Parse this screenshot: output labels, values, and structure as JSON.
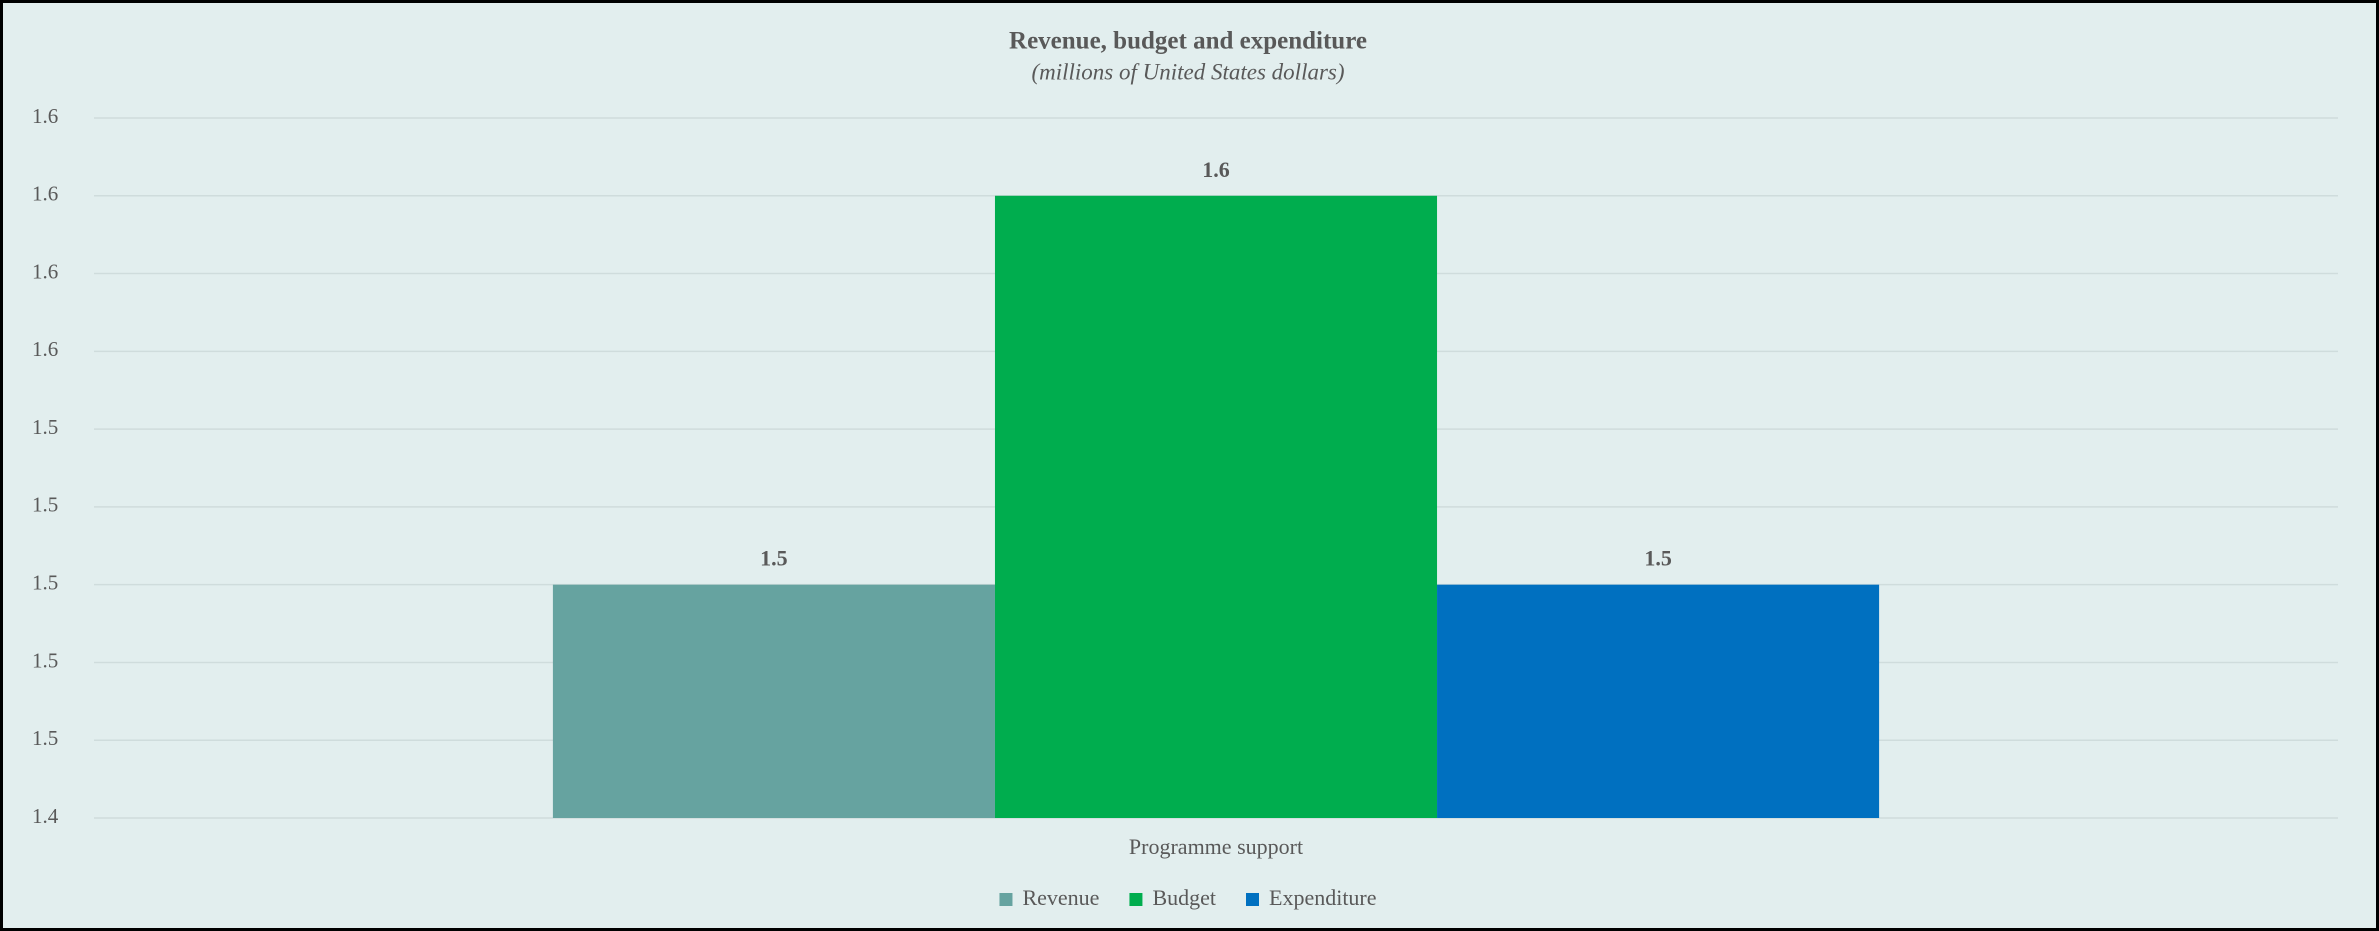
{
  "chart_data": {
    "type": "bar",
    "title": "Revenue, budget and expenditure",
    "subtitle": "(millions of United States dollars)",
    "categories": [
      "Programme support"
    ],
    "series": [
      {
        "name": "Revenue",
        "color": "#66a3a0",
        "values": [
          1.5
        ]
      },
      {
        "name": "Budget",
        "color": "#00ad4e",
        "values": [
          1.6
        ]
      },
      {
        "name": "Expenditure",
        "color": "#0070c0",
        "values": [
          1.5
        ]
      }
    ],
    "ylim": [
      1.44,
      1.62
    ],
    "yticks": [
      {
        "value": 1.44,
        "label": "1.4"
      },
      {
        "value": 1.46,
        "label": "1.5"
      },
      {
        "value": 1.48,
        "label": "1.5"
      },
      {
        "value": 1.5,
        "label": "1.5"
      },
      {
        "value": 1.52,
        "label": "1.5"
      },
      {
        "value": 1.54,
        "label": "1.5"
      },
      {
        "value": 1.56,
        "label": "1.6"
      },
      {
        "value": 1.58,
        "label": "1.6"
      },
      {
        "value": 1.6,
        "label": "1.6"
      },
      {
        "value": 1.62,
        "label": "1.6"
      }
    ],
    "grid": true,
    "legend": "bottom"
  }
}
